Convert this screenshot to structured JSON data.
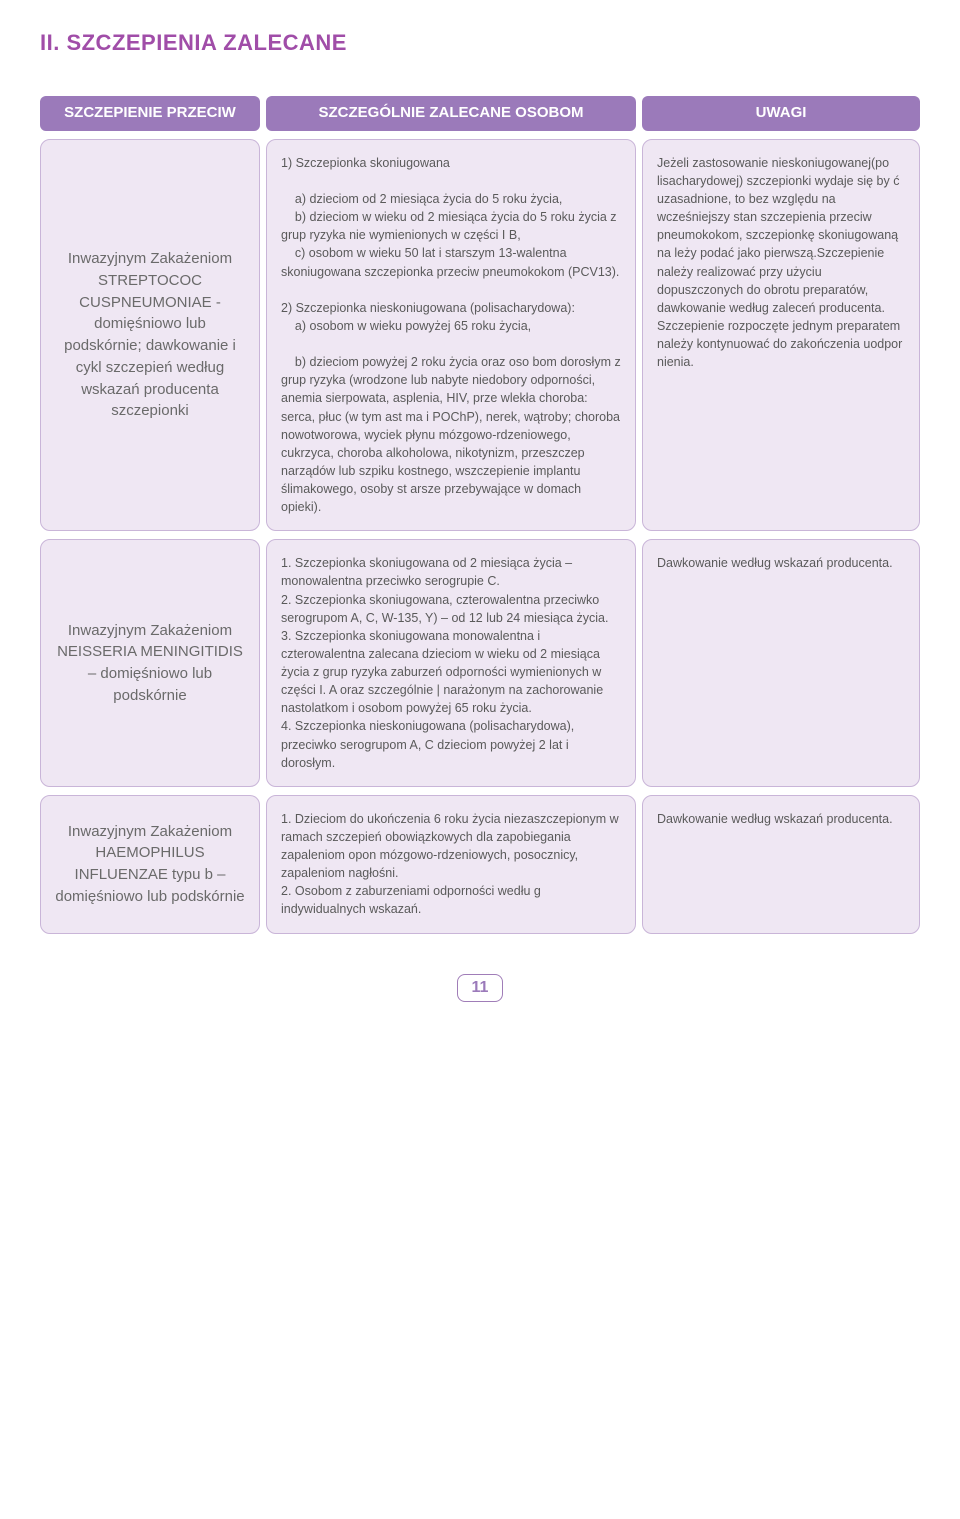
{
  "page_title": "II. SZCZEPIENIA ZALECANE",
  "page_number": "11",
  "colors": {
    "accent": "#a04da8",
    "header_bg": "#9b7aba",
    "header_text": "#ffffff",
    "cell_bg": "#efe7f3",
    "cell_border": "#c9b5d8",
    "body_text": "#5a5a5a"
  },
  "headers": {
    "col1": "SZCZEPIENIE PRZECIW",
    "col2": "SZCZEGÓLNIE ZALECANE OSOBOM",
    "col3": "UWAGI"
  },
  "rows": [
    {
      "przeciw": "Inwazyjnym Zakażeniom STREPTOCOC CUSPNEUMONIAE - domięśniowo lub podskórnie; dawkowanie i cykl szczepień według wskazań producenta szczepionki",
      "zalecane": "1) Szczepionka skoniugowana\n\n    a) dzieciom od 2 miesiąca życia do 5 roku życia,\n    b) dzieciom w wieku od 2 miesiąca życia do 5 roku życia z grup ryzyka nie wymienionych w części I B,\n    c) osobom w wieku 50 lat i starszym 13-walentna skoniugowana szczepionka przeciw pneumokokom (PCV13).\n\n2) Szczepionka nieskoniugowana (polisacharydowa):\n    a) osobom w wieku powyżej 65 roku życia,\n\n    b) dzieciom powyżej 2 roku życia oraz oso bom dorosłym z grup ryzyka (wrodzone lub nabyte niedobory odporności, anemia sierpowata, asplenia, HIV, prze wlekła choroba: serca, płuc (w tym ast ma i POChP), nerek, wątroby; choroba nowotworowa, wyciek płynu mózgowo-rdzeniowego, cukrzyca, choroba alkoholowa, nikotynizm, przeszczep narządów lub szpiku kostnego, wszczepienie implantu ślimakowego, osoby st arsze przebywające w domach opieki).",
      "uwagi": "Jeżeli zastosowanie nieskoniugowanej(po lisacharydowej) szczepionki wydaje się by ć uzasadnione, to bez względu na wcześniejszy stan szczepienia przeciw pneumokokom, szczepionkę skoniugowaną na leży podać jako pierwszą.Szczepienie należy realizować przy użyciu dopuszczonych do obrotu preparatów,  dawkowanie  według zaleceń producenta. Szczepienie  rozpoczęte  jednym preparatem należy kontynuować do zakończenia uodpor nienia."
    },
    {
      "przeciw": "Inwazyjnym Zakażeniom NEISSERIA MENINGITIDIS – domięśniowo lub podskórnie",
      "zalecane": "1. Szczepionka skoniugowana od 2 miesiąca życia – monowalentna przeciwko serogrupie C.\n2. Szczepionka skoniugowana, czterowalentna przeciwko serogrupom A, C, W-135, Y) – od 12 lub 24 miesiąca życia.\n3. Szczepionka skoniugowana monowalentna i czterowalentna zalecana dzieciom w wieku od 2 miesiąca życia z grup ryzyka zaburzeń odporności wymienionych w części I. A oraz szczególnie | narażonym na zachorowanie nastolatkom i osobom powyżej 65 roku życia.\n4. Szczepionka nieskoniugowana (polisacharydowa), przeciwko serogrupom A, C dzieciom powyżej 2 lat i dorosłym.",
      "uwagi": "Dawkowanie według wskazań producenta."
    },
    {
      "przeciw": "Inwazyjnym Zakażeniom HAEMOPHILUS INFLUENZAE typu b – domięśniowo lub podskórnie",
      "zalecane": "1. Dzieciom do ukończenia 6 roku życia niezaszczepionym w ramach szczepień obowiązkowych dla zapobiegania zapaleniom opon mózgowo-rdzeniowych, posocznicy, zapaleniom nagłośni.\n2. Osobom z zaburzeniami odporności wedłu g indywidualnych wskazań.",
      "uwagi": "Dawkowanie według wskazań producenta."
    }
  ]
}
